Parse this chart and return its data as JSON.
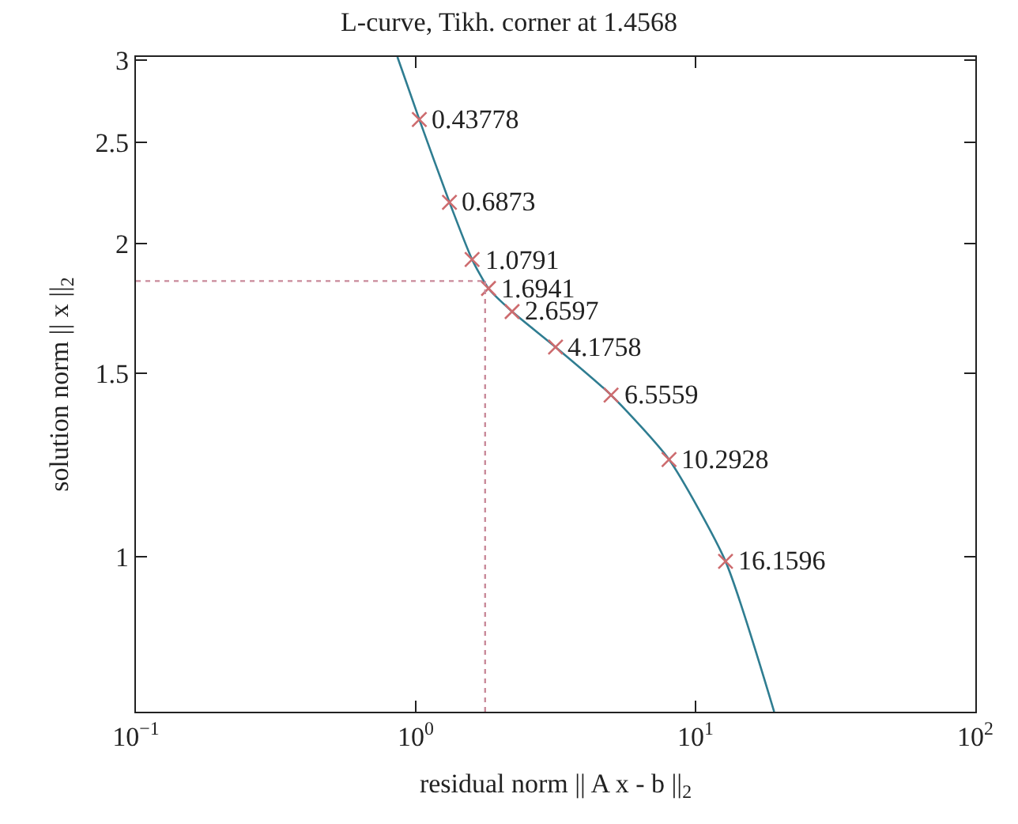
{
  "chart_data": {
    "type": "line",
    "title": "L-curve, Tikh. corner at 1.4568",
    "xlabel": "residual norm || A x - b ||$_{2}$",
    "ylabel": "solution norm || x ||$_{2}$",
    "log": "xy",
    "xlim": [
      0.1,
      100
    ],
    "xticks": [
      {
        "value": 0.1,
        "label": "10$^{−1}$"
      },
      {
        "value": 1,
        "label": "10$^{0}$"
      },
      {
        "value": 10,
        "label": "10$^{1}$"
      },
      {
        "value": 100,
        "label": "10$^{2}$"
      }
    ],
    "ylim": [
      0.71,
      3.02
    ],
    "yticks": [
      1,
      1.5,
      2,
      2.5,
      3
    ],
    "series": [
      {
        "color": "#2f7d91",
        "marker": "none",
        "line_style": "solid",
        "x": [
          0.86,
          1.03,
          1.32,
          1.59,
          1.82,
          2.21,
          3.16,
          4.99,
          8.04,
          12.8,
          19.1
        ],
        "values": [
          3.02,
          2.63,
          2.19,
          1.93,
          1.81,
          1.72,
          1.59,
          1.43,
          1.24,
          0.99,
          0.71
        ]
      },
      {
        "type": "scatter",
        "color": "#cd6b6e",
        "marker": "cross",
        "x": [
          1.03,
          1.32,
          1.59,
          1.82,
          2.21,
          3.16,
          4.99,
          8.04,
          12.8
        ],
        "values": [
          2.63,
          2.19,
          1.93,
          1.81,
          1.72,
          1.59,
          1.43,
          1.24,
          0.99
        ]
      }
    ],
    "ref_lines": [
      {
        "axis": "x",
        "value": 1.77,
        "color": "#c98a9a",
        "line_style": "dotted"
      },
      {
        "axis": "y",
        "value": 1.84,
        "color": "#c98a9a",
        "line_style": "dotted"
      }
    ],
    "annotations": [
      {
        "text": "0.43778",
        "x": 1.03,
        "y": 2.63
      },
      {
        "text": "0.6873",
        "x": 1.32,
        "y": 2.19
      },
      {
        "text": "1.0791",
        "x": 1.59,
        "y": 1.93
      },
      {
        "text": "1.6941",
        "x": 1.82,
        "y": 1.81
      },
      {
        "text": "2.6597",
        "x": 2.21,
        "y": 1.72
      },
      {
        "text": "4.1758",
        "x": 3.16,
        "y": 1.59
      },
      {
        "text": "6.5559",
        "x": 4.99,
        "y": 1.43
      },
      {
        "text": "10.2928",
        "x": 8.04,
        "y": 1.24
      },
      {
        "text": "16.1596",
        "x": 12.8,
        "y": 0.99
      }
    ]
  }
}
